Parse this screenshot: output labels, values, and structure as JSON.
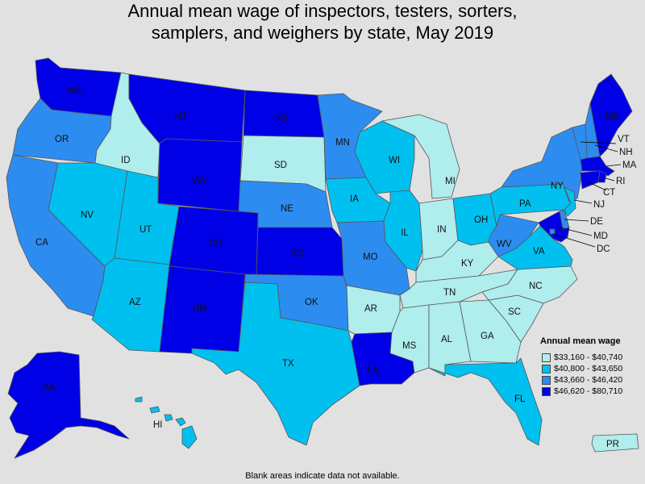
{
  "title_line1": "Annual mean wage of inspectors, testers, sorters,",
  "title_line2": "samplers, and weighers by state, May 2019",
  "footnote": "Blank areas indicate data not available.",
  "legend": {
    "title": "Annual mean wage",
    "items": [
      {
        "label": "$33,160 - $40,740",
        "color": "#b0eded"
      },
      {
        "label": "$40,800 - $43,650",
        "color": "#00c0f0"
      },
      {
        "label": "$43,660 - $46,420",
        "color": "#2d8cf0"
      },
      {
        "label": "$46,620 - $80,710",
        "color": "#0000e6"
      }
    ]
  },
  "states": {
    "WA": {
      "label": "WA",
      "tier": 3
    },
    "OR": {
      "label": "OR",
      "tier": 2
    },
    "CA": {
      "label": "CA",
      "tier": 2
    },
    "ID": {
      "label": "ID",
      "tier": 0
    },
    "NV": {
      "label": "NV",
      "tier": 1
    },
    "UT": {
      "label": "UT",
      "tier": 1
    },
    "AZ": {
      "label": "AZ",
      "tier": 1
    },
    "MT": {
      "label": "MT",
      "tier": 3
    },
    "WY": {
      "label": "WY",
      "tier": 3
    },
    "CO": {
      "label": "CO",
      "tier": 3
    },
    "NM": {
      "label": "NM",
      "tier": 3
    },
    "ND": {
      "label": "ND",
      "tier": 3
    },
    "SD": {
      "label": "SD",
      "tier": 0
    },
    "NE": {
      "label": "NE",
      "tier": 2
    },
    "KS": {
      "label": "KS",
      "tier": 3
    },
    "OK": {
      "label": "OK",
      "tier": 2
    },
    "TX": {
      "label": "TX",
      "tier": 1
    },
    "MN": {
      "label": "MN",
      "tier": 2
    },
    "IA": {
      "label": "IA",
      "tier": 1
    },
    "MO": {
      "label": "MO",
      "tier": 2
    },
    "AR": {
      "label": "AR",
      "tier": 0
    },
    "LA": {
      "label": "LA",
      "tier": 3
    },
    "WI": {
      "label": "WI",
      "tier": 1
    },
    "IL": {
      "label": "IL",
      "tier": 1
    },
    "MI": {
      "label": "MI",
      "tier": 0
    },
    "IN": {
      "label": "IN",
      "tier": 0
    },
    "OH": {
      "label": "OH",
      "tier": 1
    },
    "KY": {
      "label": "KY",
      "tier": 0
    },
    "TN": {
      "label": "TN",
      "tier": 0
    },
    "MS": {
      "label": "MS",
      "tier": 0
    },
    "AL": {
      "label": "AL",
      "tier": 0
    },
    "GA": {
      "label": "GA",
      "tier": 0
    },
    "FL": {
      "label": "FL",
      "tier": 1
    },
    "SC": {
      "label": "SC",
      "tier": 0
    },
    "NC": {
      "label": "NC",
      "tier": 0
    },
    "VA": {
      "label": "VA",
      "tier": 1
    },
    "WV": {
      "label": "WV",
      "tier": 2
    },
    "PA": {
      "label": "PA",
      "tier": 1
    },
    "NY": {
      "label": "NY",
      "tier": 2
    },
    "VT": {
      "label": "VT",
      "tier": 2
    },
    "NH": {
      "label": "NH",
      "tier": 2
    },
    "ME": {
      "label": "ME",
      "tier": 3
    },
    "MA": {
      "label": "MA",
      "tier": 3
    },
    "RI": {
      "label": "RI",
      "tier": 3
    },
    "CT": {
      "label": "CT",
      "tier": 3
    },
    "NJ": {
      "label": "NJ",
      "tier": 1
    },
    "DE": {
      "label": "DE",
      "tier": 2
    },
    "MD": {
      "label": "MD",
      "tier": 3
    },
    "DC": {
      "label": "DC",
      "tier": 2
    },
    "AK": {
      "label": "AK",
      "tier": 3
    },
    "HI": {
      "label": "HI",
      "tier": 1
    },
    "PR": {
      "label": "PR",
      "tier": 0
    }
  }
}
